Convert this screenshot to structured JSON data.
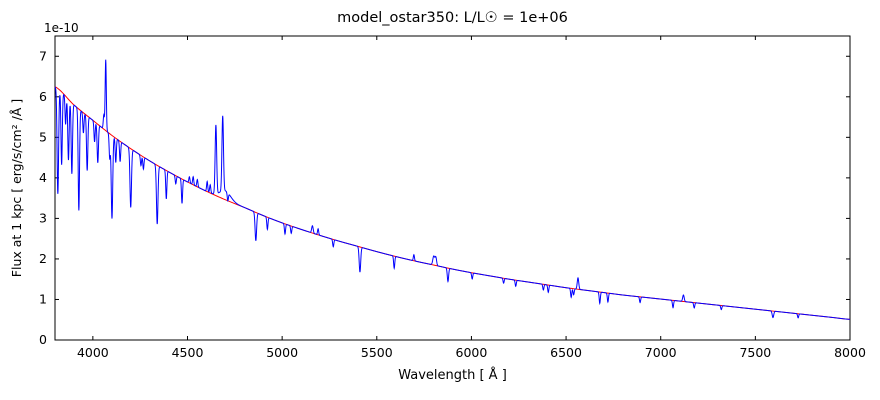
{
  "chart_data": {
    "type": "line",
    "title": "model_ostar350: L/L☉ = 1e+06",
    "xlabel": "Wavelength [ Å ]",
    "ylabel": "Flux at 1 kpc [ erg/s/cm² /Å ]",
    "offset_text": "1e-10",
    "xlim": [
      3800,
      8000
    ],
    "ylim": [
      0,
      7.5
    ],
    "xticks": [
      4000,
      4500,
      5000,
      5500,
      6000,
      6500,
      7000,
      7500,
      8000
    ],
    "yticks": [
      0,
      1,
      2,
      3,
      4,
      5,
      6,
      7
    ],
    "grid": false,
    "legend_position": "none",
    "series": [
      {
        "name": "continuum_fit",
        "color": "#ff0000",
        "anchors": [
          [
            3800,
            6.25
          ],
          [
            3900,
            5.8
          ],
          [
            4000,
            5.42
          ],
          [
            4100,
            5.05
          ],
          [
            4200,
            4.72
          ],
          [
            4300,
            4.42
          ],
          [
            4400,
            4.15
          ],
          [
            4500,
            3.9
          ],
          [
            4600,
            3.67
          ],
          [
            4700,
            3.46
          ],
          [
            4800,
            3.27
          ],
          [
            4900,
            3.07
          ],
          [
            5000,
            2.89
          ],
          [
            5100,
            2.73
          ],
          [
            5200,
            2.58
          ],
          [
            5300,
            2.44
          ],
          [
            5400,
            2.31
          ],
          [
            5500,
            2.18
          ],
          [
            5600,
            2.06
          ],
          [
            5700,
            1.95
          ],
          [
            5800,
            1.85
          ],
          [
            5900,
            1.75
          ],
          [
            6000,
            1.66
          ],
          [
            6100,
            1.58
          ],
          [
            6200,
            1.5
          ],
          [
            6300,
            1.43
          ],
          [
            6400,
            1.36
          ],
          [
            6500,
            1.29
          ],
          [
            6600,
            1.23
          ],
          [
            6700,
            1.17
          ],
          [
            6800,
            1.11
          ],
          [
            6900,
            1.06
          ],
          [
            7000,
            1.01
          ],
          [
            7100,
            0.96
          ],
          [
            7200,
            0.91
          ],
          [
            7300,
            0.86
          ],
          [
            7400,
            0.81
          ],
          [
            7500,
            0.76
          ],
          [
            7600,
            0.71
          ],
          [
            7700,
            0.66
          ],
          [
            7800,
            0.61
          ],
          [
            7900,
            0.56
          ],
          [
            8000,
            0.51
          ]
        ]
      },
      {
        "name": "observed_spectrum",
        "color": "#0000ff",
        "base": "continuum_fit",
        "lines": [
          [
            3815,
            -2.6,
            4.0
          ],
          [
            3835,
            -1.8,
            3.5
          ],
          [
            3856,
            -0.7,
            3.0
          ],
          [
            3871,
            -1.5,
            3.5
          ],
          [
            3889,
            -1.75,
            3.5
          ],
          [
            3926,
            -2.5,
            3.5
          ],
          [
            3950,
            -0.5,
            3.0
          ],
          [
            3970,
            -1.35,
            3.5
          ],
          [
            4009,
            -0.5,
            3.0
          ],
          [
            4026,
            -0.95,
            3.5
          ],
          [
            4058,
            0.35,
            3.0
          ],
          [
            4068,
            1.75,
            3.0
          ],
          [
            4089,
            -0.6,
            3.0
          ],
          [
            4101,
            -2.05,
            4.0
          ],
          [
            4121,
            -0.6,
            3.0
          ],
          [
            4144,
            -0.5,
            3.0
          ],
          [
            4200,
            -1.45,
            4.0
          ],
          [
            4254,
            -0.25,
            3.0
          ],
          [
            4267,
            -0.3,
            3.0
          ],
          [
            4340,
            -1.45,
            4.0
          ],
          [
            4388,
            -0.7,
            3.0
          ],
          [
            4438,
            -0.2,
            3.0
          ],
          [
            4471,
            -0.6,
            3.0
          ],
          [
            4510,
            0.15,
            3.0
          ],
          [
            4530,
            0.2,
            3.0
          ],
          [
            4552,
            0.18,
            3.0
          ],
          [
            4604,
            0.25,
            3.0
          ],
          [
            4620,
            0.2,
            3.0
          ],
          [
            4650,
            1.7,
            4.0
          ],
          [
            4686,
            1.85,
            4.0
          ],
          [
            4700,
            0.22,
            28.0
          ],
          [
            4713,
            -0.2,
            3.0
          ],
          [
            4861,
            -0.7,
            4.0
          ],
          [
            4922,
            -0.3,
            3.0
          ],
          [
            5015,
            -0.25,
            3.0
          ],
          [
            5048,
            -0.18,
            3.0
          ],
          [
            5160,
            0.18,
            4.0
          ],
          [
            5190,
            0.15,
            3.0
          ],
          [
            5270,
            -0.18,
            3.0
          ],
          [
            5411,
            -0.62,
            4.0
          ],
          [
            5592,
            -0.3,
            3.0
          ],
          [
            5696,
            0.15,
            3.0
          ],
          [
            5801,
            0.22,
            5.0
          ],
          [
            5812,
            0.2,
            4.0
          ],
          [
            5876,
            -0.33,
            3.5
          ],
          [
            6004,
            -0.15,
            3.0
          ],
          [
            6170,
            -0.12,
            3.0
          ],
          [
            6234,
            -0.15,
            3.0
          ],
          [
            6380,
            -0.14,
            3.0
          ],
          [
            6406,
            -0.18,
            3.0
          ],
          [
            6527,
            -0.22,
            3.0
          ],
          [
            6540,
            -0.15,
            3.0
          ],
          [
            6563,
            0.28,
            4.0
          ],
          [
            6678,
            -0.28,
            3.0
          ],
          [
            6721,
            -0.22,
            3.0
          ],
          [
            6891,
            -0.14,
            3.0
          ],
          [
            7065,
            -0.18,
            3.0
          ],
          [
            7120,
            0.16,
            4.0
          ],
          [
            7177,
            -0.13,
            3.0
          ],
          [
            7320,
            -0.1,
            3.0
          ],
          [
            7593,
            -0.16,
            4.0
          ],
          [
            7726,
            -0.1,
            3.0
          ]
        ]
      }
    ]
  }
}
